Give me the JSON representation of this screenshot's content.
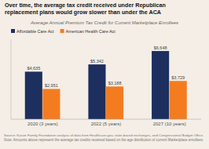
{
  "chart_data": {
    "type": "bar",
    "title": "Over time, the average tax credit received under Republican\nreplacement plans would grow slower than under the ACA",
    "subtitle": "Average Annual Premium Tax Credit for Current Marketplace Enrollees",
    "annotations": [
      "Source: Kaiser Family Foundation analysis of data from Healthcare.gov, state-based exchanges, and Congressional Budget Office.",
      "Note: Amounts above represent the average tax credits received based on the age distribution of current Marketplace enrollees."
    ],
    "categories": [
      "2020 (3 years)",
      "2022 (5 years)",
      "2027 (10 years)"
    ],
    "series": [
      {
        "name": "Affordable Care Act",
        "color": "#1c2f5e",
        "values": [
          4635,
          5342,
          6648
        ],
        "value_labels": [
          "$4,635",
          "$5,342",
          "$6,648"
        ]
      },
      {
        "name": "American Health Care Act",
        "color": "#f47c20",
        "values": [
          2951,
          3188,
          3729
        ],
        "value_labels": [
          "$2,951",
          "$3,188",
          "$3,729"
        ]
      }
    ],
    "ylim": [
      0,
      7800
    ],
    "yticks": [],
    "tick_labels": "x",
    "data_labels": true,
    "legend": "upper left",
    "grid": false
  }
}
